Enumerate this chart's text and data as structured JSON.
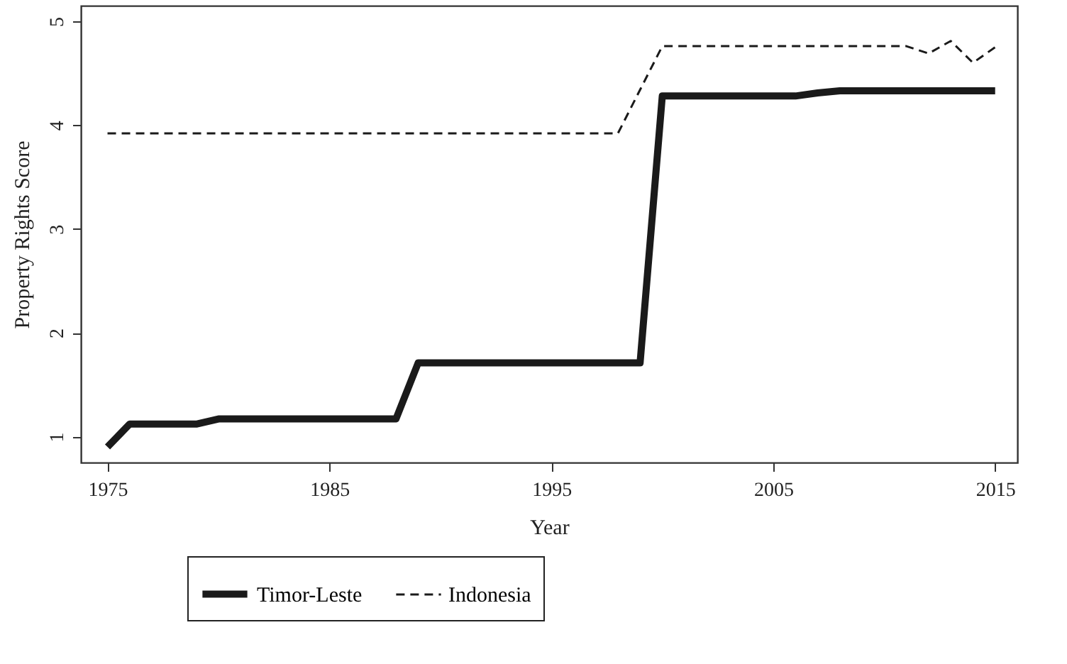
{
  "chart_data": {
    "type": "line",
    "xlabel": "Year",
    "ylabel": "Property Rights Score",
    "x": [
      1975,
      1976,
      1977,
      1978,
      1979,
      1980,
      1981,
      1982,
      1983,
      1984,
      1985,
      1986,
      1987,
      1988,
      1989,
      1990,
      1991,
      1992,
      1993,
      1994,
      1995,
      1996,
      1997,
      1998,
      1999,
      2000,
      2001,
      2002,
      2003,
      2004,
      2005,
      2006,
      2007,
      2008,
      2009,
      2010,
      2011,
      2012,
      2013,
      2014,
      2015
    ],
    "series": [
      {
        "name": "Timor-Leste",
        "color": "#1a1a1a",
        "line_style": "solid",
        "values": [
          0.9,
          1.12,
          1.12,
          1.12,
          1.12,
          1.17,
          1.17,
          1.17,
          1.17,
          1.17,
          1.17,
          1.17,
          1.17,
          1.17,
          1.71,
          1.71,
          1.71,
          1.71,
          1.71,
          1.71,
          1.71,
          1.71,
          1.71,
          1.71,
          1.71,
          4.28,
          4.28,
          4.28,
          4.28,
          4.28,
          4.28,
          4.28,
          4.31,
          4.33,
          4.33,
          4.33,
          4.33,
          4.33,
          4.33,
          4.33,
          4.33
        ]
      },
      {
        "name": "Indonesia",
        "color": "#1a1a1a",
        "line_style": "dashed",
        "values": [
          3.92,
          3.92,
          3.92,
          3.92,
          3.92,
          3.92,
          3.92,
          3.92,
          3.92,
          3.92,
          3.92,
          3.92,
          3.92,
          3.92,
          3.92,
          3.92,
          3.92,
          3.92,
          3.92,
          3.92,
          3.92,
          3.92,
          3.92,
          3.92,
          4.34,
          4.76,
          4.76,
          4.76,
          4.76,
          4.76,
          4.76,
          4.76,
          4.76,
          4.76,
          4.76,
          4.76,
          4.76,
          4.69,
          4.81,
          4.6,
          4.75
        ]
      }
    ],
    "xlim": [
      1973.8,
      2016
    ],
    "xticks": [
      1975,
      1985,
      1995,
      2005,
      2015
    ],
    "ylim": [
      0.75,
      5.15
    ],
    "yticks": [
      1,
      2,
      3,
      4,
      5
    ],
    "grid": false,
    "legend": "bottom"
  }
}
